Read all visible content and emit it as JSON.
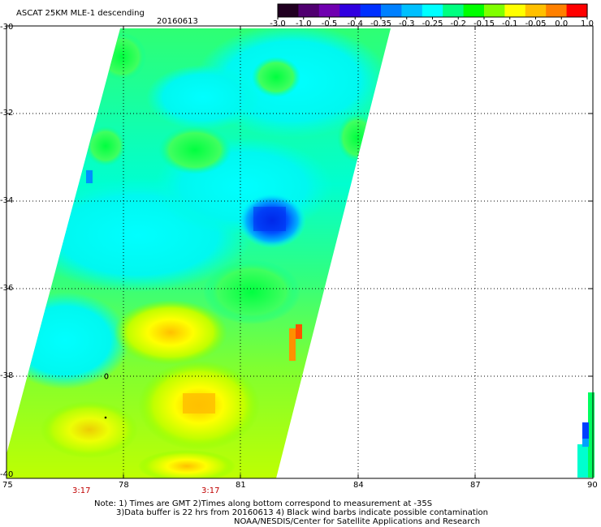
{
  "header": {
    "title": "ASCAT 25KM MLE-1 descending",
    "date": "20160613"
  },
  "colorbar": {
    "ticks": [
      "-3.0",
      "-1.0",
      "-0.5",
      "-0.4",
      "-0.35",
      "-0.3",
      "-0.25",
      "-0.2",
      "-0.15",
      "-0.1",
      "-0.05",
      "0.0",
      "1.0"
    ],
    "colors": [
      "#200020",
      "#500070",
      "#7000b0",
      "#3000e0",
      "#0030ff",
      "#0080ff",
      "#00c0ff",
      "#00ffff",
      "#00ff80",
      "#00ff00",
      "#80ff00",
      "#ffff00",
      "#ffc000",
      "#ff8000",
      "#ff0000"
    ]
  },
  "map": {
    "lon_labels": [
      "75",
      "78",
      "81",
      "84",
      "87",
      "90"
    ],
    "lat_labels": [
      "-30",
      "-32",
      "-34",
      "-36",
      "-38",
      "-40"
    ],
    "time_labels": [
      "3:17",
      "3:17"
    ],
    "colors": {
      "cyan": "#00ffff",
      "aqua": "#00f0d0",
      "green": "#00ff40",
      "lgreen": "#40ff40",
      "ygreen": "#a0ff20",
      "yellow": "#ffff00",
      "orange": "#ffc000",
      "red": "#ff6000",
      "blue": "#0040ff",
      "lblue": "#0090ff"
    }
  },
  "footer": {
    "line1": "Note: 1) Times are GMT 2)Times along bottom correspond to measurement at -35S",
    "line2": "3)Data buffer is 22 hrs from 20160613 4) Black wind barbs indicate possible contamination",
    "line3": "NOAA/NESDIS/Center for Satellite Applications and Research"
  }
}
